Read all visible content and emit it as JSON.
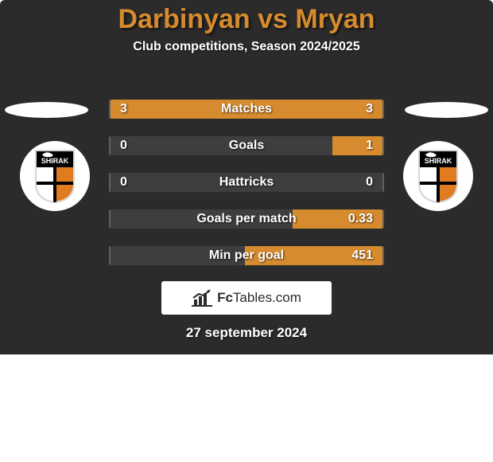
{
  "panel": {
    "background_color": "#2b2b2b",
    "title": "Darbinyan vs Mryan",
    "title_color": "#d68b2e",
    "title_fontsize": 34,
    "subtitle": "Club competitions, Season 2024/2025",
    "subtitle_fontsize": 16,
    "date": "27 september 2024"
  },
  "players": {
    "left": {
      "team": "SHIRAK",
      "shield_colors": {
        "top": "#000000",
        "left": "#ffffff",
        "right": "#e07b1f",
        "outline": "#d6d6d6",
        "text": "#ffffff"
      }
    },
    "right": {
      "team": "SHIRAK",
      "shield_colors": {
        "top": "#000000",
        "left": "#ffffff",
        "right": "#e07b1f",
        "outline": "#d6d6d6",
        "text": "#ffffff"
      }
    }
  },
  "stats": {
    "bar_track_color": "#3e3e3e",
    "bar_fill_color": "#d68b2e",
    "label_fontsize": 16,
    "rows": [
      {
        "label": "Matches",
        "left_value": "3",
        "right_value": "3",
        "left_pct": 50,
        "right_pct": 50
      },
      {
        "label": "Goals",
        "left_value": "0",
        "right_value": "1",
        "left_pct": 0,
        "right_pct": 18.5
      },
      {
        "label": "Hattricks",
        "left_value": "0",
        "right_value": "0",
        "left_pct": 0,
        "right_pct": 0
      },
      {
        "label": "Goals per match",
        "left_value": "",
        "right_value": "0.33",
        "left_pct": 0,
        "right_pct": 33
      },
      {
        "label": "Min per goal",
        "left_value": "",
        "right_value": "451",
        "left_pct": 0,
        "right_pct": 50.5
      }
    ]
  },
  "brand": {
    "name_bold": "Fc",
    "name_rest": "Tables.com",
    "icon_color": "#2b2b2b"
  }
}
